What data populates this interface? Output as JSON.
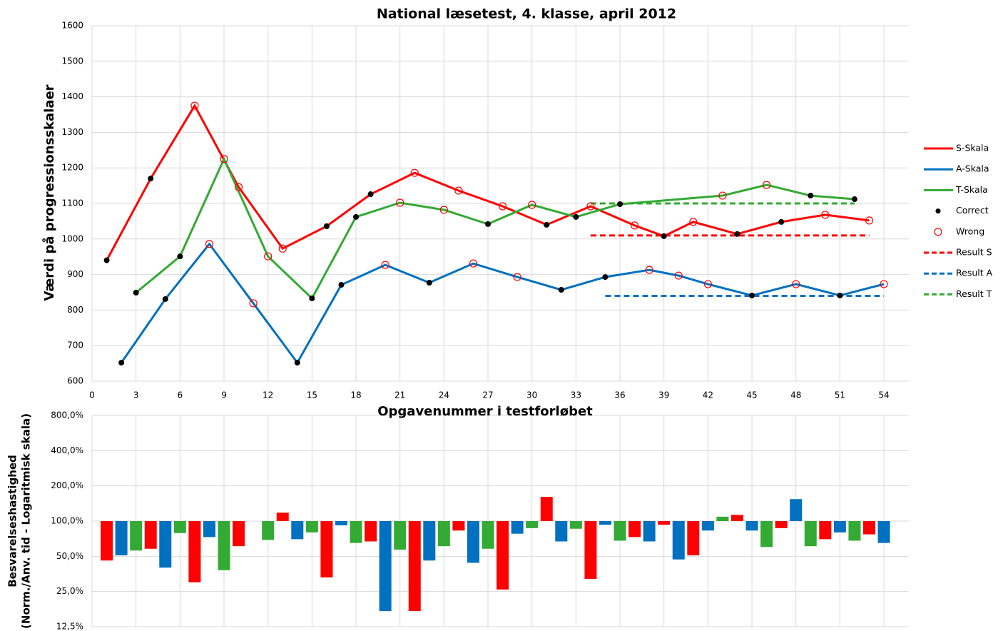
{
  "chart_data": [
    {
      "type": "line",
      "title": "National læsetest, 4. klasse, april 2012",
      "xlabel": "Opgavenummer i testforløbet",
      "ylabel": "Værdi på progressionsskalaer",
      "xlim": [
        0,
        55.7
      ],
      "ylim": [
        600,
        1600
      ],
      "xticks": [
        0,
        3,
        6,
        9,
        12,
        15,
        18,
        21,
        24,
        27,
        30,
        33,
        36,
        39,
        42,
        45,
        48,
        51,
        54
      ],
      "yticks": [
        600,
        700,
        800,
        900,
        1000,
        1100,
        1200,
        1300,
        1400,
        1500,
        1600
      ],
      "grid": true,
      "legend": "right",
      "series": [
        {
          "name": "S-Skala",
          "color": "#ff0000",
          "style": "line",
          "x": [
            1,
            4,
            7,
            10,
            13,
            16,
            19,
            22,
            25,
            28,
            31,
            34,
            37,
            39,
            41,
            44,
            47,
            50,
            53
          ],
          "values": [
            940,
            1170,
            1375,
            1146,
            973,
            1036,
            1126,
            1186,
            1136,
            1092,
            1040,
            1092,
            1038,
            1008,
            1048,
            1014,
            1048,
            1068,
            1052
          ]
        },
        {
          "name": "A-Skala",
          "color": "#0070c0",
          "style": "line",
          "x": [
            2,
            5,
            8,
            11,
            14,
            17,
            20,
            23,
            26,
            29,
            32,
            35,
            38,
            40,
            42,
            45,
            48,
            51,
            54
          ],
          "values": [
            652,
            831,
            986,
            819,
            652,
            871,
            927,
            877,
            931,
            893,
            857,
            893,
            913,
            897,
            873,
            841,
            873,
            841,
            873
          ]
        },
        {
          "name": "T-Skala",
          "color": "#33aa33",
          "style": "line",
          "x": [
            3,
            6,
            9,
            12,
            15,
            18,
            21,
            24,
            27,
            30,
            33,
            36,
            43,
            46,
            49,
            52
          ],
          "values": [
            849,
            951,
            1225,
            951,
            833,
            1062,
            1102,
            1082,
            1042,
            1096,
            1062,
            1098,
            1122,
            1152,
            1122,
            1112
          ]
        },
        {
          "name": "Correct",
          "color": "#000000",
          "style": "dot",
          "x": [
            1,
            2,
            3,
            4,
            5,
            6,
            14,
            15,
            16,
            17,
            18,
            19,
            23,
            27,
            31,
            32,
            33,
            35,
            36,
            39,
            44,
            45,
            47,
            49,
            51,
            52
          ],
          "values": [
            940,
            652,
            849,
            1170,
            831,
            951,
            652,
            833,
            1036,
            871,
            1062,
            1126,
            877,
            1042,
            1040,
            857,
            1062,
            893,
            1098,
            1008,
            1014,
            841,
            1048,
            1122,
            841,
            1112
          ]
        },
        {
          "name": "Wrong",
          "color": "#ff0000",
          "style": "circle",
          "x": [
            7,
            8,
            9,
            10,
            11,
            12,
            13,
            20,
            21,
            22,
            24,
            25,
            26,
            28,
            29,
            30,
            34,
            37,
            38,
            40,
            41,
            42,
            43,
            46,
            48,
            50,
            53,
            54
          ],
          "values": [
            1375,
            986,
            1225,
            1146,
            819,
            951,
            973,
            927,
            1102,
            1186,
            1082,
            1136,
            931,
            1092,
            893,
            1096,
            1092,
            1038,
            913,
            897,
            1048,
            873,
            1122,
            1152,
            873,
            1068,
            1052,
            873
          ]
        },
        {
          "name": "Result S",
          "color": "#ff0000",
          "style": "dash",
          "x": [
            34,
            53
          ],
          "values": [
            1010,
            1010
          ]
        },
        {
          "name": "Result A",
          "color": "#0070c0",
          "style": "dash",
          "x": [
            35,
            54
          ],
          "values": [
            840,
            840
          ]
        },
        {
          "name": "Result T",
          "color": "#33aa33",
          "style": "dash",
          "x": [
            34,
            52
          ],
          "values": [
            1100,
            1100
          ]
        }
      ]
    },
    {
      "type": "bar",
      "ylabel": [
        "Besvarelseshastighed",
        "(Norm./Anv. tid - Logaritmisk skala)"
      ],
      "log_scale": true,
      "xlim": [
        0,
        55.7
      ],
      "ylim": [
        12.5,
        800
      ],
      "baseline": 100,
      "xticks": [
        0,
        3,
        6,
        9,
        12,
        15,
        18,
        21,
        24,
        27,
        30,
        33,
        36,
        39,
        42,
        45,
        48,
        51,
        54
      ],
      "yticks": [
        {
          "value": 12.5,
          "label": "12,5%"
        },
        {
          "value": 25,
          "label": "25,0%"
        },
        {
          "value": 50,
          "label": "50,0%"
        },
        {
          "value": 100,
          "label": "100,0%"
        },
        {
          "value": 200,
          "label": "200,0%"
        },
        {
          "value": 400,
          "label": "400,0%"
        },
        {
          "value": 800,
          "label": "800,0%"
        }
      ],
      "grid": true,
      "series": [
        {
          "color": "#ff0000",
          "x": [
            1,
            4,
            7,
            10,
            13,
            16,
            19,
            22,
            25,
            28,
            31,
            34,
            37,
            39,
            41,
            44,
            47,
            50,
            53
          ],
          "values": [
            46,
            58,
            30,
            61,
            118,
            33,
            67,
            17,
            83,
            26,
            161,
            32,
            73,
            93,
            51,
            113,
            87,
            70,
            77
          ]
        },
        {
          "color": "#0070c0",
          "x": [
            2,
            5,
            8,
            14,
            17,
            20,
            23,
            26,
            29,
            32,
            35,
            38,
            40,
            42,
            45,
            48,
            51,
            54
          ],
          "values": [
            51,
            40,
            73,
            70,
            92,
            17,
            46,
            44,
            78,
            67,
            93,
            67,
            47,
            83,
            83,
            154,
            80,
            65
          ]
        },
        {
          "color": "#33aa33",
          "x": [
            3,
            6,
            9,
            12,
            15,
            18,
            21,
            24,
            27,
            30,
            33,
            36,
            43,
            46,
            49,
            52
          ],
          "values": [
            56,
            79,
            38,
            69,
            80,
            65,
            57,
            61,
            58,
            87,
            86,
            68,
            109,
            60,
            61,
            68
          ]
        }
      ]
    }
  ]
}
